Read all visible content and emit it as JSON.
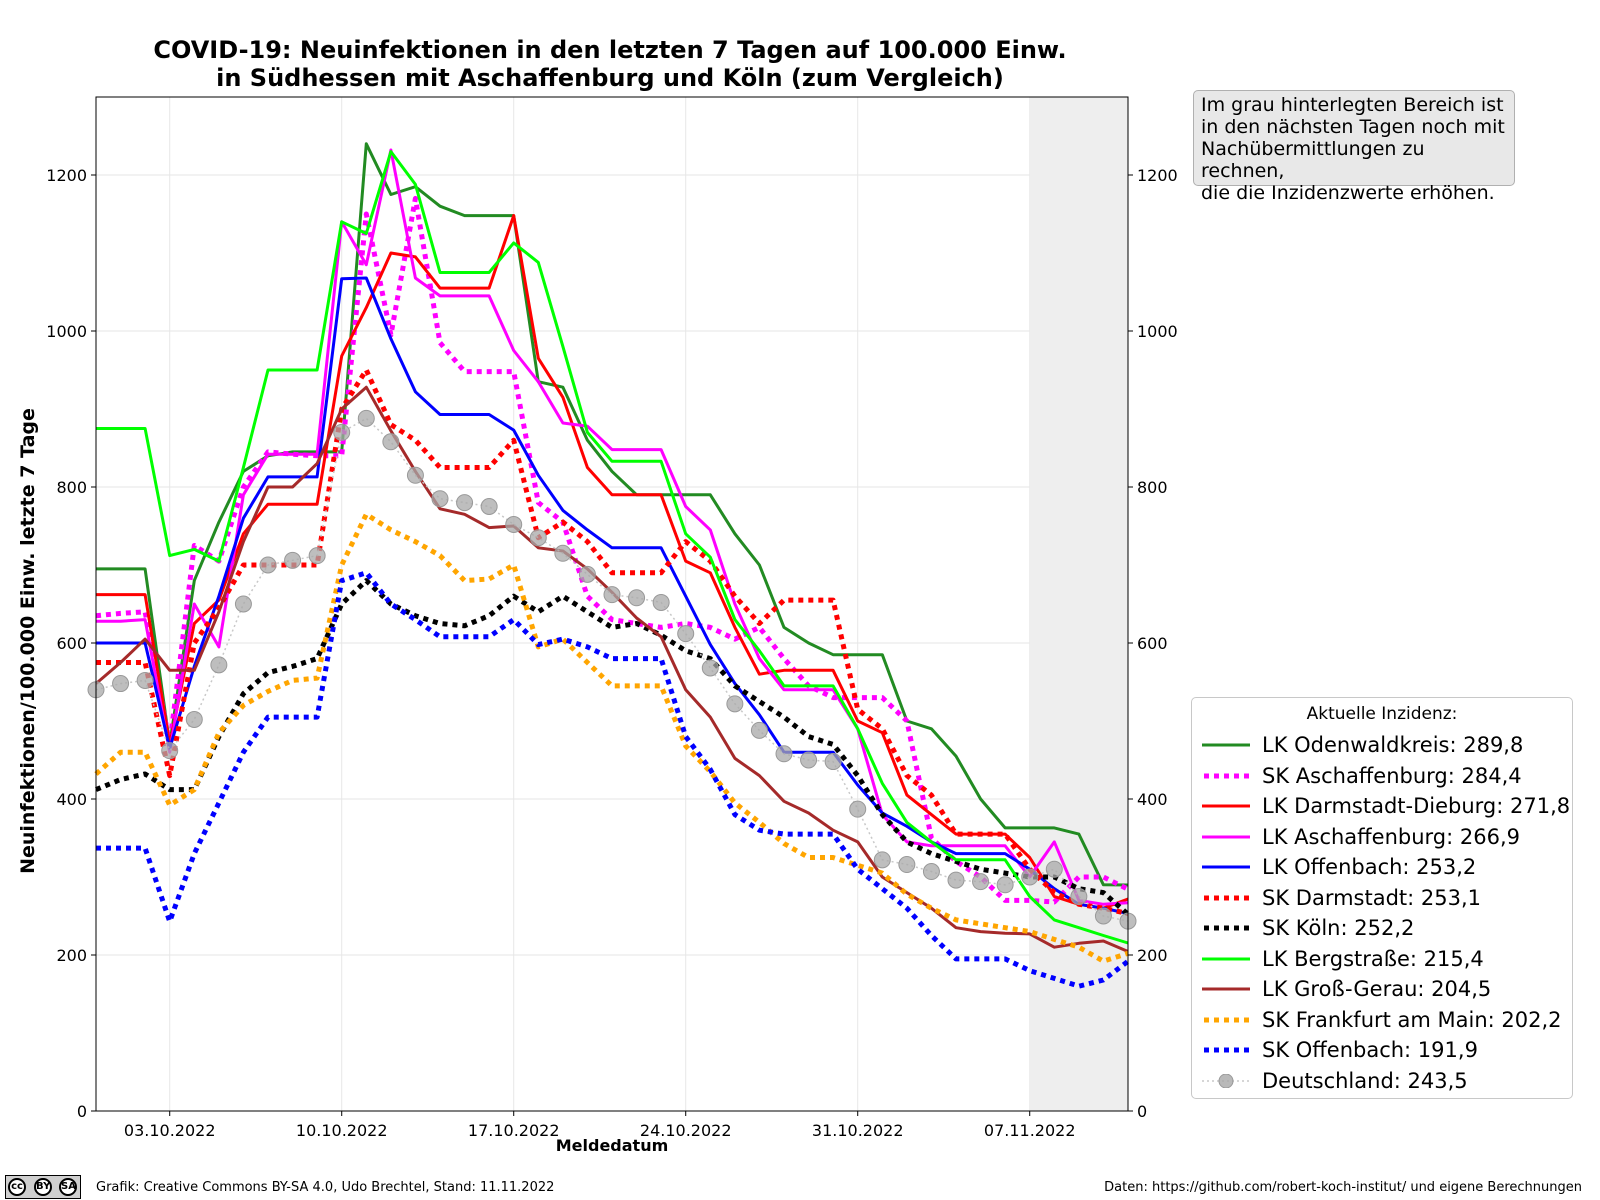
{
  "chart_data": {
    "type": "line",
    "title": [
      "COVID-19: Neuinfektionen in den letzten 7 Tagen auf 100.000 Einw.",
      "in Südhessen mit Aschaffenburg und Köln (zum Vergleich)"
    ],
    "xlabel": "Meldedatum",
    "ylabel": "Neuinfektionen/100.000 Einw. letzte 7 Tage",
    "x_start_date": "2022-09-30",
    "x_days": 43,
    "xlim": [
      0,
      42
    ],
    "xticks": [
      {
        "day": 3,
        "label": "03.10.2022"
      },
      {
        "day": 10,
        "label": "10.10.2022"
      },
      {
        "day": 17,
        "label": "17.10.2022"
      },
      {
        "day": 24,
        "label": "24.10.2022"
      },
      {
        "day": 31,
        "label": "31.10.2022"
      },
      {
        "day": 38,
        "label": "07.11.2022"
      }
    ],
    "ylim": [
      0,
      1300
    ],
    "yticks": [
      0,
      200,
      400,
      600,
      800,
      1000,
      1200
    ],
    "grid": true,
    "shaded_region": {
      "from_day": 38,
      "to_day": 42,
      "color": "#eeeeee"
    },
    "legend_title": "Aktuelle Inzidenz:",
    "legend_position": "lower-right-outside",
    "series": [
      {
        "name": "LK Odenwaldkreis",
        "label": "LK Odenwaldkreis: 289,8",
        "color": "#228b22",
        "style": "solid",
        "values": [
          695,
          695,
          695,
          470,
          680,
          755,
          820,
          840,
          845,
          845,
          845,
          1240,
          1175,
          1185,
          1160,
          1148,
          1148,
          1148,
          935,
          928,
          860,
          820,
          790,
          790,
          790,
          790,
          740,
          700,
          620,
          600,
          585,
          585,
          585,
          500,
          490,
          455,
          400,
          363,
          363,
          363,
          355,
          290,
          289.8
        ]
      },
      {
        "name": "SK Aschaffenburg",
        "label": "SK Aschaffenburg: 284,4",
        "color": "#ff00ff",
        "style": "dotted",
        "values": [
          635,
          638,
          640,
          470,
          725,
          705,
          800,
          845,
          842,
          840,
          840,
          1150,
          995,
          1170,
          985,
          948,
          948,
          948,
          780,
          755,
          660,
          630,
          625,
          620,
          625,
          620,
          605,
          620,
          580,
          545,
          530,
          530,
          530,
          500,
          350,
          320,
          300,
          270,
          270,
          268,
          300,
          300,
          284.4
        ]
      },
      {
        "name": "LK Darmstadt-Dieburg",
        "label": "LK Darmstadt-Dieburg: 271,8",
        "color": "#ff0000",
        "style": "solid",
        "values": [
          662,
          662,
          662,
          470,
          625,
          655,
          740,
          778,
          778,
          778,
          968,
          1030,
          1100,
          1095,
          1055,
          1055,
          1055,
          1148,
          965,
          915,
          825,
          790,
          790,
          790,
          705,
          690,
          620,
          560,
          565,
          565,
          565,
          500,
          485,
          405,
          380,
          355,
          355,
          355,
          325,
          275,
          265,
          260,
          271.8
        ]
      },
      {
        "name": "LK Aschaffenburg",
        "label": "LK Aschaffenburg: 266,9",
        "color": "#ff00ff",
        "style": "solid",
        "values": [
          628,
          628,
          630,
          460,
          650,
          595,
          790,
          842,
          842,
          842,
          1140,
          1085,
          1232,
          1068,
          1045,
          1045,
          1045,
          975,
          935,
          882,
          878,
          848,
          848,
          848,
          775,
          745,
          650,
          580,
          540,
          540,
          540,
          490,
          380,
          345,
          340,
          340,
          340,
          340,
          300,
          345,
          270,
          265,
          266.9
        ]
      },
      {
        "name": "LK Offenbach",
        "label": "LK Offenbach: 253,2",
        "color": "#0000ff",
        "style": "solid",
        "values": [
          600,
          600,
          600,
          465,
          570,
          660,
          760,
          813,
          813,
          813,
          1067,
          1068,
          990,
          922,
          893,
          893,
          893,
          873,
          815,
          770,
          745,
          722,
          722,
          722,
          660,
          598,
          548,
          508,
          460,
          460,
          460,
          418,
          382,
          365,
          345,
          330,
          330,
          330,
          310,
          285,
          265,
          260,
          253.2
        ]
      },
      {
        "name": "SK Darmstadt",
        "label": "SK Darmstadt: 253,1",
        "color": "#ff0000",
        "style": "dotted",
        "values": [
          575,
          575,
          575,
          430,
          600,
          645,
          700,
          700,
          700,
          700,
          900,
          950,
          880,
          860,
          825,
          825,
          825,
          860,
          735,
          755,
          730,
          690,
          690,
          690,
          730,
          705,
          660,
          625,
          655,
          655,
          655,
          515,
          490,
          430,
          405,
          355,
          355,
          355,
          310,
          280,
          265,
          260,
          253.1
        ]
      },
      {
        "name": "SK Köln",
        "label": "SK Köln: 252,2",
        "color": "#000000",
        "style": "dotted",
        "values": [
          412,
          425,
          432,
          412,
          412,
          480,
          535,
          562,
          570,
          580,
          650,
          680,
          650,
          635,
          625,
          622,
          635,
          660,
          640,
          660,
          640,
          620,
          625,
          610,
          590,
          580,
          545,
          525,
          505,
          480,
          470,
          430,
          380,
          345,
          330,
          320,
          310,
          305,
          300,
          300,
          285,
          280,
          252.2
        ]
      },
      {
        "name": "LK Bergstraße",
        "label": "LK Bergstraße: 215,4",
        "color": "#00ff00",
        "style": "solid",
        "values": [
          875,
          875,
          875,
          712,
          720,
          705,
          825,
          950,
          950,
          950,
          1140,
          1125,
          1230,
          1188,
          1075,
          1075,
          1075,
          1113,
          1088,
          980,
          870,
          833,
          833,
          833,
          740,
          710,
          630,
          590,
          545,
          545,
          545,
          490,
          420,
          370,
          345,
          322,
          322,
          322,
          275,
          245,
          235,
          225,
          215.4
        ]
      },
      {
        "name": "LK Groß-Gerau",
        "label": "LK Groß-Gerau: 204,5",
        "color": "#a52a2a",
        "style": "solid",
        "values": [
          548,
          575,
          605,
          565,
          565,
          640,
          730,
          800,
          800,
          830,
          900,
          928,
          872,
          820,
          772,
          765,
          748,
          750,
          722,
          718,
          695,
          665,
          632,
          608,
          540,
          505,
          452,
          430,
          397,
          382,
          360,
          345,
          300,
          280,
          260,
          235,
          230,
          228,
          227,
          210,
          215,
          218,
          204.5
        ]
      },
      {
        "name": "SK Frankfurt am Main",
        "label": "SK Frankfurt am Main: 202,2",
        "color": "#ffa500",
        "style": "dotted",
        "values": [
          432,
          460,
          460,
          392,
          412,
          485,
          520,
          538,
          552,
          555,
          700,
          765,
          745,
          730,
          712,
          680,
          682,
          700,
          595,
          605,
          575,
          545,
          545,
          545,
          468,
          435,
          395,
          370,
          343,
          325,
          325,
          315,
          305,
          278,
          260,
          245,
          240,
          235,
          230,
          220,
          210,
          192,
          202.2
        ]
      },
      {
        "name": "SK Offenbach",
        "label": "SK Offenbach: 191,9",
        "color": "#0000ff",
        "style": "dotted",
        "values": [
          337,
          337,
          337,
          243,
          330,
          395,
          460,
          505,
          505,
          505,
          680,
          690,
          650,
          630,
          608,
          608,
          608,
          630,
          598,
          605,
          595,
          580,
          580,
          580,
          480,
          438,
          380,
          360,
          355,
          355,
          355,
          310,
          285,
          260,
          225,
          195,
          195,
          195,
          180,
          170,
          160,
          168,
          191.9
        ]
      },
      {
        "name": "Deutschland",
        "label": "Deutschland: 243,5",
        "color": "#aaaaaa",
        "style": "marker",
        "values": [
          540,
          548,
          552,
          462,
          502,
          572,
          650,
          700,
          706,
          712,
          870,
          888,
          858,
          815,
          785,
          780,
          775,
          752,
          735,
          715,
          688,
          662,
          658,
          652,
          612,
          568,
          522,
          488,
          458,
          450,
          448,
          387,
          322,
          316,
          307,
          296,
          294,
          290,
          300,
          310,
          275,
          250,
          243.5
        ]
      }
    ]
  },
  "note": [
    "Im grau hinterlegten Bereich ist",
    "in den nächsten Tagen noch mit",
    "Nachübermittlungen zu rechnen,",
    "die die Inzidenzwerte erhöhen."
  ],
  "footer": {
    "left": "Grafik: Creative Commons BY-SA 4.0, Udo Brechtel, Stand: 11.11.2022",
    "right": "Daten: https://github.com/robert-koch-institut/ und eigene Berechnungen",
    "cc_logo_text": [
      "cc",
      "BY",
      "SA"
    ]
  }
}
